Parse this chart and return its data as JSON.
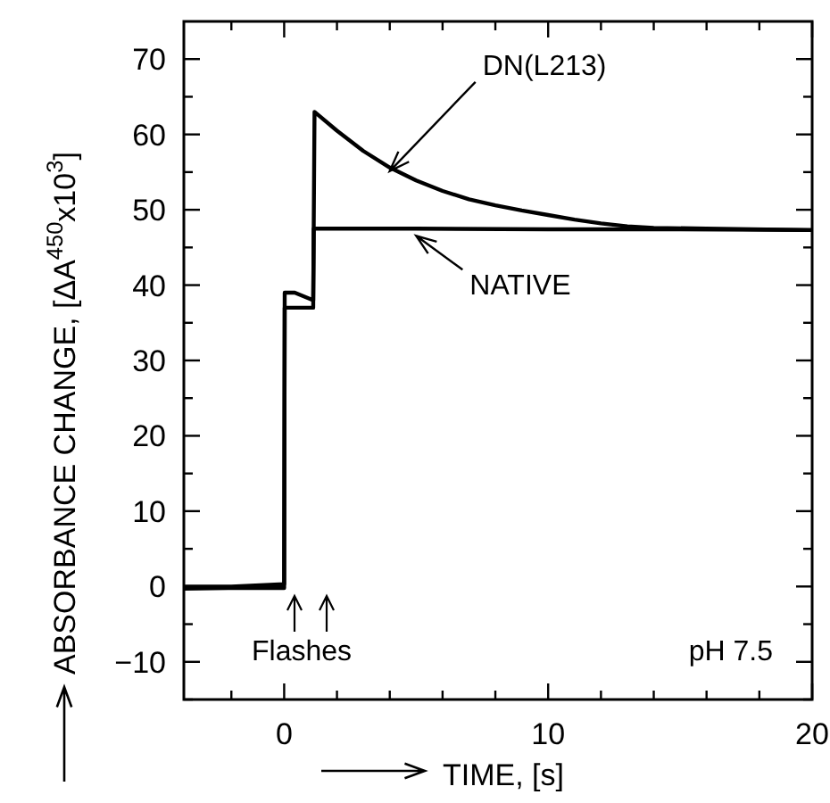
{
  "chart_data": {
    "type": "line",
    "xlabel": "TIME, [s]",
    "ylabel": "ABSORBANCE CHANGE, [ΔA$^{450}$x10$^{3}$]",
    "xlim": [
      -3.8,
      20
    ],
    "ylim": [
      -15,
      75
    ],
    "xticks": [
      {
        "value": -2,
        "label": null
      },
      0,
      {
        "value": 2,
        "label": null
      },
      {
        "value": 4,
        "label": null
      },
      {
        "value": 6,
        "label": null
      },
      {
        "value": 8,
        "label": null
      },
      10,
      {
        "value": 12,
        "label": null
      },
      {
        "value": 14,
        "label": null
      },
      {
        "value": 16,
        "label": null
      },
      {
        "value": 18,
        "label": null
      },
      20
    ],
    "yticks": [
      {
        "value": -15,
        "label": null
      },
      -10,
      {
        "value": -5,
        "label": null
      },
      0,
      {
        "value": 5,
        "label": null
      },
      10,
      {
        "value": 15,
        "label": null
      },
      20,
      {
        "value": 25,
        "label": null
      },
      30,
      {
        "value": 35,
        "label": null
      },
      40,
      {
        "value": 45,
        "label": null
      },
      50,
      {
        "value": 55,
        "label": null
      },
      60,
      {
        "value": 65,
        "label": null
      },
      70
    ],
    "grid": false,
    "line_style": "solid",
    "series": [
      {
        "color": "#000000",
        "x": [
          -3.8,
          -2,
          0,
          0.02,
          0.4,
          1.1,
          1.15,
          2,
          3,
          4,
          5,
          6,
          7,
          8,
          9,
          10,
          11,
          12,
          13,
          14,
          16,
          20
        ],
        "values": [
          0,
          0,
          0.3,
          39,
          39,
          38,
          63,
          60.5,
          57.8,
          55.6,
          53.9,
          52.5,
          51.4,
          50.6,
          49.9,
          49.3,
          48.7,
          48.2,
          47.8,
          47.6,
          47.5,
          47.3
        ]
      },
      {
        "color": "#000000",
        "x": [
          -3.8,
          -2,
          0,
          0.02,
          1.1,
          1.12,
          5,
          10,
          15,
          20
        ],
        "values": [
          -0.3,
          -0.2,
          -0.2,
          37,
          37,
          47.5,
          47.5,
          47.4,
          47.4,
          47.3
        ]
      }
    ],
    "annotations": [
      {
        "text": "DN(L213)",
        "x": 4,
        "y": 55.6
      },
      {
        "text": "NATIVE",
        "x": 5,
        "y": 47.5
      },
      "Flashes",
      "pH 7.5"
    ]
  }
}
